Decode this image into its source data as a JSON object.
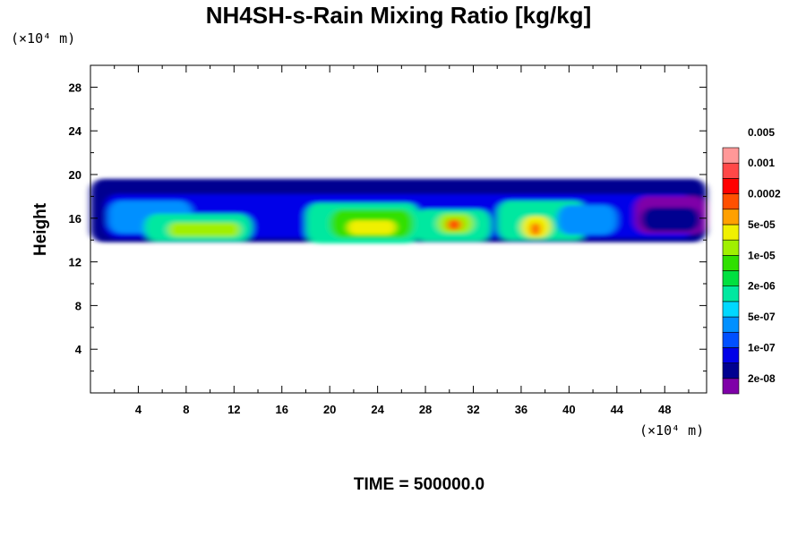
{
  "chart_data": {
    "type": "heatmap",
    "title": "NH4SH-s-Rain Mixing Ratio [kg/kg]",
    "ylabel": "Height",
    "x_unit": "(×10⁴ m)",
    "y_unit": "(×10⁴ m)",
    "footer": "TIME = 500000.0",
    "xlim": [
      0,
      51.5
    ],
    "ylim": [
      0,
      30
    ],
    "x_ticks": [
      4,
      8,
      12,
      16,
      20,
      24,
      28,
      32,
      36,
      40,
      44,
      48
    ],
    "y_ticks": [
      4,
      8,
      12,
      16,
      20,
      24,
      28
    ],
    "colorbar": {
      "colors": [
        "#7f00a8",
        "#000090",
        "#0000e8",
        "#0050ff",
        "#0090ff",
        "#00d8ff",
        "#00e8a0",
        "#00e040",
        "#30e000",
        "#a0f000",
        "#f0f000",
        "#ffa000",
        "#ff5000",
        "#ff0000",
        "#ff4848",
        "#ff9898"
      ],
      "labels": [
        "2e-08",
        "1e-07",
        "5e-07",
        "2e-06",
        "1e-05",
        "5e-05",
        "0.0002",
        "0.001",
        "0.005"
      ],
      "label_bins": [
        1,
        3,
        5,
        7,
        9,
        11,
        13,
        15,
        17
      ]
    },
    "blobs": [
      {
        "x": [
          0,
          51.5
        ],
        "y": [
          13.8,
          19.6
        ],
        "level": 1
      },
      {
        "x": [
          1.2,
          50.5
        ],
        "y": [
          14.2,
          18.2
        ],
        "level": 2
      },
      {
        "x": [
          1.5,
          8.5
        ],
        "y": [
          14.6,
          17.6
        ],
        "level": 4
      },
      {
        "x": [
          4.5,
          13.5
        ],
        "y": [
          13.9,
          16.4
        ],
        "level": 6
      },
      {
        "x": [
          6.5,
          12.5
        ],
        "y": [
          14.3,
          15.6
        ],
        "level": 9
      },
      {
        "x": [
          18.0,
          27.5
        ],
        "y": [
          13.7,
          17.4
        ],
        "level": 6
      },
      {
        "x": [
          20.0,
          27.0
        ],
        "y": [
          14.2,
          16.8
        ],
        "level": 8
      },
      {
        "x": [
          21.5,
          25.5
        ],
        "y": [
          14.5,
          15.8
        ],
        "level": 10
      },
      {
        "x": [
          27.0,
          33.5
        ],
        "y": [
          13.9,
          16.8
        ],
        "level": 6
      },
      {
        "x": [
          29.0,
          32.0
        ],
        "y": [
          14.6,
          16.4
        ],
        "level": 9
      },
      {
        "x": [
          29.8,
          31.0
        ],
        "y": [
          14.9,
          15.9
        ],
        "level": 12
      },
      {
        "x": [
          34.0,
          41.5
        ],
        "y": [
          14.0,
          17.6
        ],
        "level": 6
      },
      {
        "x": [
          36.0,
          38.5
        ],
        "y": [
          14.2,
          16.2
        ],
        "level": 10
      },
      {
        "x": [
          36.8,
          37.6
        ],
        "y": [
          14.4,
          15.6
        ],
        "level": 12
      },
      {
        "x": [
          39.0,
          44.0
        ],
        "y": [
          14.5,
          17.2
        ],
        "level": 4
      },
      {
        "x": [
          45.5,
          51.5
        ],
        "y": [
          14.6,
          18.0
        ],
        "level": 0
      },
      {
        "x": [
          46.0,
          51.0
        ],
        "y": [
          14.8,
          17.0
        ],
        "level": 1
      }
    ]
  }
}
